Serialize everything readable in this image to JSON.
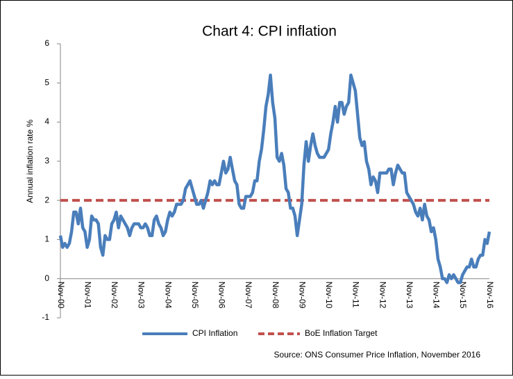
{
  "chart_data": {
    "type": "line",
    "title": "Chart 4: CPI inflation",
    "y_label": "Annual inflation rate %",
    "source": "Source: ONS Consumer Price Inflation, November 2016",
    "legend": "bottom",
    "ylim": [
      -1,
      6
    ],
    "yticks": [
      -1,
      0,
      1,
      2,
      3,
      4,
      5,
      6
    ],
    "categories": [
      "Nov-00",
      null,
      null,
      null,
      null,
      null,
      null,
      null,
      null,
      null,
      null,
      null,
      "Nov-01",
      null,
      null,
      null,
      null,
      null,
      null,
      null,
      null,
      null,
      null,
      null,
      "Nov-02",
      null,
      null,
      null,
      null,
      null,
      null,
      null,
      null,
      null,
      null,
      null,
      "Nov-03",
      null,
      null,
      null,
      null,
      null,
      null,
      null,
      null,
      null,
      null,
      null,
      "Nov-04",
      null,
      null,
      null,
      null,
      null,
      null,
      null,
      null,
      null,
      null,
      null,
      "Nov-05",
      null,
      null,
      null,
      null,
      null,
      null,
      null,
      null,
      null,
      null,
      null,
      "Nov-06",
      null,
      null,
      null,
      null,
      null,
      null,
      null,
      null,
      null,
      null,
      null,
      "Nov-07",
      null,
      null,
      null,
      null,
      null,
      null,
      null,
      null,
      null,
      null,
      null,
      "Nov-08",
      null,
      null,
      null,
      null,
      null,
      null,
      null,
      null,
      null,
      null,
      null,
      "Nov-09",
      null,
      null,
      null,
      null,
      null,
      null,
      null,
      null,
      null,
      null,
      null,
      "Nov-10",
      null,
      null,
      null,
      null,
      null,
      null,
      null,
      null,
      null,
      null,
      null,
      "Nov-11",
      null,
      null,
      null,
      null,
      null,
      null,
      null,
      null,
      null,
      null,
      null,
      "Nov-12",
      null,
      null,
      null,
      null,
      null,
      null,
      null,
      null,
      null,
      null,
      null,
      "Nov-13",
      null,
      null,
      null,
      null,
      null,
      null,
      null,
      null,
      null,
      null,
      null,
      "Nov-14",
      null,
      null,
      null,
      null,
      null,
      null,
      null,
      null,
      null,
      null,
      null,
      "Nov-15",
      null,
      null,
      null,
      null,
      null,
      null,
      null,
      null,
      null,
      null,
      null,
      "Nov-16"
    ],
    "series": [
      {
        "name": "CPI Inflation",
        "color": "#4a7ebb",
        "dash": false,
        "values": [
          1.1,
          0.8,
          0.9,
          0.8,
          0.9,
          1.2,
          1.7,
          1.7,
          1.4,
          1.8,
          1.3,
          1.2,
          0.8,
          1.0,
          1.6,
          1.5,
          1.5,
          1.4,
          0.8,
          0.6,
          1.1,
          1.0,
          1.0,
          1.4,
          1.5,
          1.7,
          1.3,
          1.6,
          1.5,
          1.4,
          1.3,
          1.1,
          1.3,
          1.4,
          1.4,
          1.4,
          1.3,
          1.3,
          1.4,
          1.3,
          1.1,
          1.1,
          1.5,
          1.6,
          1.4,
          1.3,
          1.1,
          1.2,
          1.5,
          1.7,
          1.6,
          1.7,
          1.9,
          1.9,
          1.9,
          2.0,
          2.3,
          2.4,
          2.5,
          2.3,
          2.1,
          1.9,
          1.9,
          2.0,
          1.8,
          2.0,
          2.2,
          2.5,
          2.4,
          2.5,
          2.4,
          2.4,
          2.7,
          3.0,
          2.7,
          2.8,
          3.1,
          2.8,
          2.5,
          2.4,
          1.9,
          1.8,
          1.8,
          2.1,
          2.1,
          2.1,
          2.2,
          2.5,
          2.5,
          3.0,
          3.3,
          3.8,
          4.4,
          4.7,
          5.2,
          4.5,
          4.1,
          3.1,
          3.0,
          3.2,
          2.9,
          2.3,
          2.2,
          1.8,
          1.8,
          1.6,
          1.1,
          1.5,
          1.9,
          2.9,
          3.5,
          3.0,
          3.4,
          3.7,
          3.4,
          3.2,
          3.1,
          3.1,
          3.1,
          3.2,
          3.3,
          3.7,
          4.0,
          4.4,
          4.0,
          4.5,
          4.5,
          4.2,
          4.4,
          4.5,
          5.2,
          5.0,
          4.8,
          4.2,
          3.6,
          3.4,
          3.5,
          3.0,
          2.8,
          2.4,
          2.6,
          2.5,
          2.2,
          2.7,
          2.7,
          2.7,
          2.7,
          2.8,
          2.8,
          2.4,
          2.7,
          2.9,
          2.8,
          2.7,
          2.7,
          2.2,
          2.1,
          2.0,
          1.9,
          1.7,
          1.6,
          1.8,
          1.5,
          1.9,
          1.6,
          1.5,
          1.2,
          1.3,
          1.0,
          0.5,
          0.3,
          0.0,
          0.0,
          -0.1,
          0.1,
          0.0,
          0.1,
          0.0,
          -0.1,
          -0.1,
          0.1,
          0.2,
          0.3,
          0.3,
          0.5,
          0.3,
          0.3,
          0.5,
          0.6,
          0.6,
          1.0,
          0.9,
          1.2
        ]
      },
      {
        "name": "BoE Inflation Target",
        "color": "#c0504d",
        "dash": true,
        "values": [
          2,
          2,
          2,
          2,
          2,
          2,
          2,
          2,
          2,
          2,
          2,
          2,
          2,
          2,
          2,
          2,
          2,
          2,
          2,
          2,
          2,
          2,
          2,
          2,
          2,
          2,
          2,
          2,
          2,
          2,
          2,
          2,
          2,
          2,
          2,
          2,
          2,
          2,
          2,
          2,
          2,
          2,
          2,
          2,
          2,
          2,
          2,
          2,
          2,
          2,
          2,
          2,
          2,
          2,
          2,
          2,
          2,
          2,
          2,
          2,
          2,
          2,
          2,
          2,
          2,
          2,
          2,
          2,
          2,
          2,
          2,
          2,
          2,
          2,
          2,
          2,
          2,
          2,
          2,
          2,
          2,
          2,
          2,
          2,
          2,
          2,
          2,
          2,
          2,
          2,
          2,
          2,
          2,
          2,
          2,
          2,
          2,
          2,
          2,
          2,
          2,
          2,
          2,
          2,
          2,
          2,
          2,
          2,
          2,
          2,
          2,
          2,
          2,
          2,
          2,
          2,
          2,
          2,
          2,
          2,
          2,
          2,
          2,
          2,
          2,
          2,
          2,
          2,
          2,
          2,
          2,
          2,
          2,
          2,
          2,
          2,
          2,
          2,
          2,
          2,
          2,
          2,
          2,
          2,
          2,
          2,
          2,
          2,
          2,
          2,
          2,
          2,
          2,
          2,
          2,
          2,
          2,
          2,
          2,
          2,
          2,
          2,
          2,
          2,
          2,
          2,
          2,
          2,
          2,
          2,
          2,
          2,
          2,
          2,
          2,
          2,
          2,
          2,
          2,
          2,
          2,
          2,
          2,
          2,
          2,
          2,
          2,
          2,
          2,
          2,
          2,
          2,
          2
        ]
      }
    ]
  }
}
